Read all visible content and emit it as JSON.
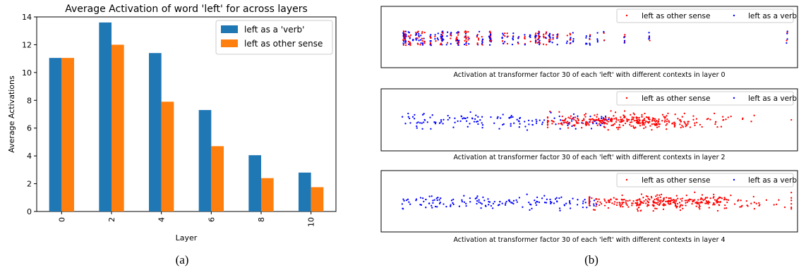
{
  "figure": {
    "caption_a": "(a)",
    "caption_b": "(b)"
  },
  "chart_data": [
    {
      "type": "bar",
      "title": "Average Activation of word 'left' for across layers",
      "xlabel": "Layer",
      "ylabel": "Average Activations",
      "categories": [
        "0",
        "2",
        "4",
        "6",
        "8",
        "10"
      ],
      "ylim": [
        0,
        14
      ],
      "yticks": [
        0,
        2,
        4,
        6,
        8,
        10,
        12,
        14
      ],
      "grid": false,
      "legend_position": "top-right",
      "series": [
        {
          "name": "left as a 'verb'",
          "color": "#1f77b4",
          "values": [
            11.05,
            13.6,
            11.4,
            7.3,
            4.05,
            2.8
          ]
        },
        {
          "name": "left as other sense",
          "color": "#ff7f0e",
          "values": [
            11.05,
            12.0,
            7.9,
            4.7,
            2.4,
            1.75
          ]
        }
      ]
    },
    {
      "type": "scatter",
      "title": "Activation at transformer factor 30 of each 'left' with different contexts in layer 0",
      "legend_position": "top-right",
      "legend": [
        {
          "name": "left as other sense",
          "color": "#ff0000"
        },
        {
          "name": "left as a verb",
          "color": "#0000ff"
        }
      ]
    },
    {
      "type": "scatter",
      "title": "Activation at transformer factor 30 of each 'left' with different contexts in layer 2",
      "legend_position": "top-right",
      "legend": [
        {
          "name": "left as other sense",
          "color": "#ff0000"
        },
        {
          "name": "left as a verb",
          "color": "#0000ff"
        }
      ]
    },
    {
      "type": "scatter",
      "title": "Activation at transformer factor 30 of each 'left' with different contexts in layer 4",
      "legend_position": "top-right",
      "legend": [
        {
          "name": "left as other sense",
          "color": "#ff0000"
        },
        {
          "name": "left as a verb",
          "color": "#0000ff"
        }
      ]
    }
  ]
}
